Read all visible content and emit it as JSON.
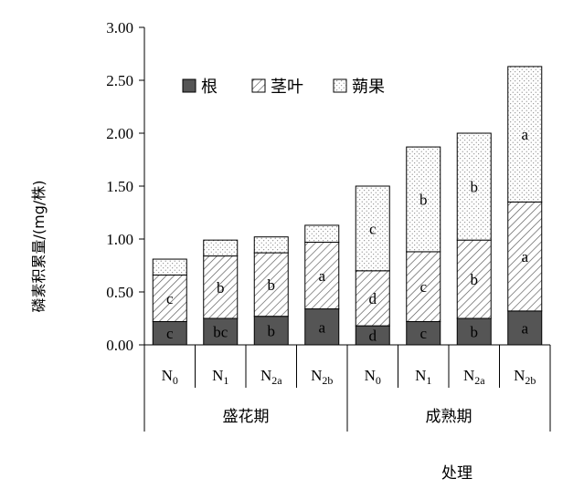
{
  "chart_data": {
    "type": "bar",
    "stacked": true,
    "ylabel": "磷素积累量/(mg/株)",
    "xlabel": "处理",
    "ylim": [
      0,
      3.0
    ],
    "y_ticks": [
      "0.00",
      "0.50",
      "1.00",
      "1.50",
      "2.00",
      "2.50",
      "3.00"
    ],
    "categories": [
      {
        "base": "N",
        "sub": "0"
      },
      {
        "base": "N",
        "sub": "1"
      },
      {
        "base": "N",
        "sub": "2a"
      },
      {
        "base": "N",
        "sub": "2b"
      },
      {
        "base": "N",
        "sub": "0"
      },
      {
        "base": "N",
        "sub": "1"
      },
      {
        "base": "N",
        "sub": "2a"
      },
      {
        "base": "N",
        "sub": "2b"
      }
    ],
    "groups": [
      {
        "label": "盛花期",
        "span": [
          0,
          3
        ]
      },
      {
        "label": "成熟期",
        "span": [
          4,
          7
        ]
      }
    ],
    "series": [
      {
        "name": "根",
        "values": [
          0.22,
          0.25,
          0.27,
          0.34,
          0.18,
          0.22,
          0.25,
          0.32
        ],
        "labels": [
          "c",
          "bc",
          "b",
          "a",
          "d",
          "c",
          "b",
          "a"
        ]
      },
      {
        "name": "茎叶",
        "values": [
          0.44,
          0.59,
          0.6,
          0.63,
          0.52,
          0.66,
          0.74,
          1.03
        ],
        "labels": [
          "c",
          "b",
          "b",
          "a",
          "d",
          "c",
          "b",
          "a"
        ]
      },
      {
        "name": "蒴果",
        "values": [
          0.15,
          0.15,
          0.15,
          0.16,
          0.8,
          0.99,
          1.01,
          1.28
        ],
        "labels": [
          "",
          "",
          "",
          "",
          "c",
          "b",
          "b",
          "a"
        ]
      }
    ],
    "legend_position": "top-left",
    "grid": false
  }
}
